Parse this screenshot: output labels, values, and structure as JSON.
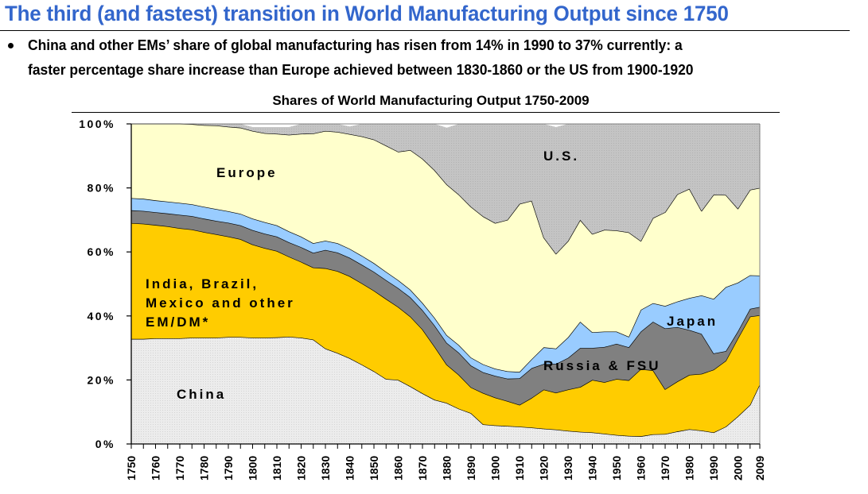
{
  "header": {
    "title": "The third (and fastest) transition in World Manufacturing Output since 1750",
    "bullet_line1": "China and other EMs’ share of global manufacturing has risen from 14% in 1990 to 37% currently: a",
    "bullet_line2": "faster percentage share increase than Europe achieved between 1830-1860 or the US from 1900-1920"
  },
  "colors": {
    "china": "#e6e6e6",
    "india_other": "#ffcc00",
    "russia_fsu": "#808080",
    "japan": "#99ccff",
    "europe": "#ffffcc",
    "us": "#c0c0c0",
    "title": "#3366cc"
  },
  "chart_data": {
    "type": "area",
    "stacked": true,
    "title": "Shares of World Manufacturing Output 1750-2009",
    "xlabel": "",
    "ylabel": "",
    "ylim": [
      0,
      100
    ],
    "yticks": [
      "0%",
      "20%",
      "40%",
      "60%",
      "80%",
      "100%"
    ],
    "ytick_values": [
      0,
      20,
      40,
      60,
      80,
      100
    ],
    "xtick_labels": [
      "1750",
      "1760",
      "1770",
      "1780",
      "1790",
      "1800",
      "1810",
      "1820",
      "1830",
      "1840",
      "1850",
      "1860",
      "1870",
      "1880",
      "1890",
      "1900",
      "1910",
      "1920",
      "1930",
      "1940",
      "1950",
      "1960",
      "1970",
      "1980",
      "1990",
      "2000",
      "2009"
    ],
    "x": [
      1750,
      1755,
      1760,
      1765,
      1770,
      1775,
      1780,
      1785,
      1790,
      1795,
      1800,
      1805,
      1810,
      1815,
      1820,
      1825,
      1830,
      1835,
      1840,
      1845,
      1850,
      1855,
      1860,
      1865,
      1870,
      1875,
      1880,
      1885,
      1890,
      1895,
      1900,
      1905,
      1910,
      1915,
      1920,
      1925,
      1930,
      1935,
      1940,
      1945,
      1950,
      1955,
      1960,
      1965,
      1970,
      1975,
      1980,
      1985,
      1990,
      1995,
      2000,
      2005,
      2009
    ],
    "series": [
      {
        "name": "China",
        "label": "China",
        "values": [
          32.8,
          32.8,
          33.0,
          33.0,
          33.0,
          33.2,
          33.2,
          33.2,
          33.4,
          33.4,
          33.2,
          33.2,
          33.3,
          33.5,
          33.2,
          32.6,
          29.8,
          28.4,
          26.8,
          24.8,
          22.7,
          20.3,
          20.0,
          18.0,
          15.8,
          13.8,
          12.8,
          11.0,
          9.6,
          6.1,
          5.8,
          5.6,
          5.4,
          5.1,
          4.8,
          4.5,
          4.1,
          3.8,
          3.6,
          3.2,
          2.8,
          2.5,
          2.4,
          3.0,
          3.1,
          3.9,
          4.6,
          4.2,
          3.6,
          5.4,
          8.6,
          12.2,
          18.6
        ]
      },
      {
        "name": "India, Brazil, Mexico and other EM/DM*",
        "label": "India, Brazil,|Mexico and other|EM/DM*",
        "values": [
          36.2,
          36.0,
          35.4,
          35.0,
          34.4,
          33.8,
          33.0,
          32.3,
          31.4,
          30.6,
          29.1,
          28.0,
          27.0,
          25.0,
          23.7,
          22.5,
          25.1,
          25.6,
          25.6,
          25.4,
          25.2,
          25.0,
          22.8,
          21.8,
          20.0,
          16.6,
          12.0,
          10.6,
          8.1,
          9.8,
          8.7,
          7.8,
          6.8,
          9.3,
          12.2,
          11.5,
          12.9,
          14.0,
          16.4,
          16.1,
          17.5,
          17.4,
          21.0,
          20.0,
          14.0,
          15.6,
          17.0,
          17.7,
          19.6,
          20.6,
          24.4,
          27.6,
          21.6
        ]
      },
      {
        "name": "Russia & FSU",
        "label": "Russia & FSU",
        "values": [
          4.0,
          4.0,
          4.0,
          4.0,
          4.2,
          4.2,
          4.2,
          4.2,
          4.3,
          4.3,
          4.5,
          4.5,
          4.5,
          4.5,
          4.6,
          4.6,
          5.7,
          5.8,
          5.8,
          5.8,
          5.9,
          5.9,
          5.9,
          6.0,
          6.0,
          6.6,
          6.8,
          6.9,
          6.8,
          6.5,
          6.8,
          7.0,
          8.3,
          9.3,
          8.0,
          9.0,
          9.9,
          12.2,
          10.0,
          11.0,
          11.0,
          10.3,
          11.7,
          15.2,
          19.0,
          17.0,
          14.0,
          12.5,
          5.1,
          3.0,
          2.2,
          2.4,
          2.6
        ]
      },
      {
        "name": "Japan",
        "label": "Japan",
        "values": [
          3.8,
          3.8,
          3.7,
          3.7,
          3.7,
          3.7,
          3.7,
          3.7,
          3.6,
          3.6,
          3.6,
          3.6,
          3.5,
          3.4,
          3.3,
          3.0,
          2.9,
          2.9,
          2.8,
          2.8,
          2.7,
          2.6,
          2.5,
          2.4,
          2.3,
          2.4,
          2.4,
          2.4,
          2.5,
          2.5,
          2.2,
          2.3,
          2.0,
          2.8,
          5.2,
          4.8,
          6.4,
          8.2,
          4.9,
          4.8,
          3.8,
          3.3,
          6.8,
          5.8,
          7.0,
          8.0,
          10.0,
          12.0,
          17.0,
          20.0,
          15.2,
          10.5,
          9.8
        ]
      },
      {
        "name": "Europe",
        "label": "Europe",
        "values": [
          23.2,
          23.4,
          23.9,
          24.3,
          24.7,
          25.0,
          25.5,
          26.1,
          26.4,
          26.9,
          27.4,
          27.8,
          28.6,
          30.2,
          32.1,
          34.3,
          34.3,
          34.8,
          35.8,
          37.3,
          38.6,
          39.4,
          40.1,
          43.6,
          45.0,
          46.1,
          47.1,
          47.0,
          47.1,
          46.2,
          45.5,
          47.3,
          52.5,
          49.5,
          34.3,
          29.6,
          30.1,
          31.8,
          30.7,
          31.8,
          31.6,
          32.6,
          21.5,
          26.6,
          29.3,
          33.5,
          34.1,
          26.4,
          32.6,
          28.8,
          23.1,
          26.7,
          27.4
        ]
      },
      {
        "name": "U.S.",
        "label": "U.S.",
        "values": [
          0.0,
          0.0,
          0.0,
          0.0,
          0.0,
          0.1,
          0.4,
          0.5,
          0.9,
          1.2,
          1.2,
          1.9,
          2.1,
          2.4,
          3.1,
          3.0,
          2.2,
          2.5,
          2.4,
          3.9,
          4.9,
          6.8,
          8.6,
          8.2,
          10.9,
          14.5,
          17.7,
          22.1,
          25.9,
          28.9,
          31.0,
          30.0,
          25.0,
          24.0,
          35.5,
          39.6,
          36.6,
          30.0,
          34.4,
          33.1,
          33.3,
          33.9,
          36.6,
          29.4,
          27.6,
          22.0,
          20.3,
          27.2,
          22.1,
          22.2,
          26.5,
          20.6,
          20.0
        ]
      }
    ],
    "grid": false,
    "legend": "inline labels"
  }
}
